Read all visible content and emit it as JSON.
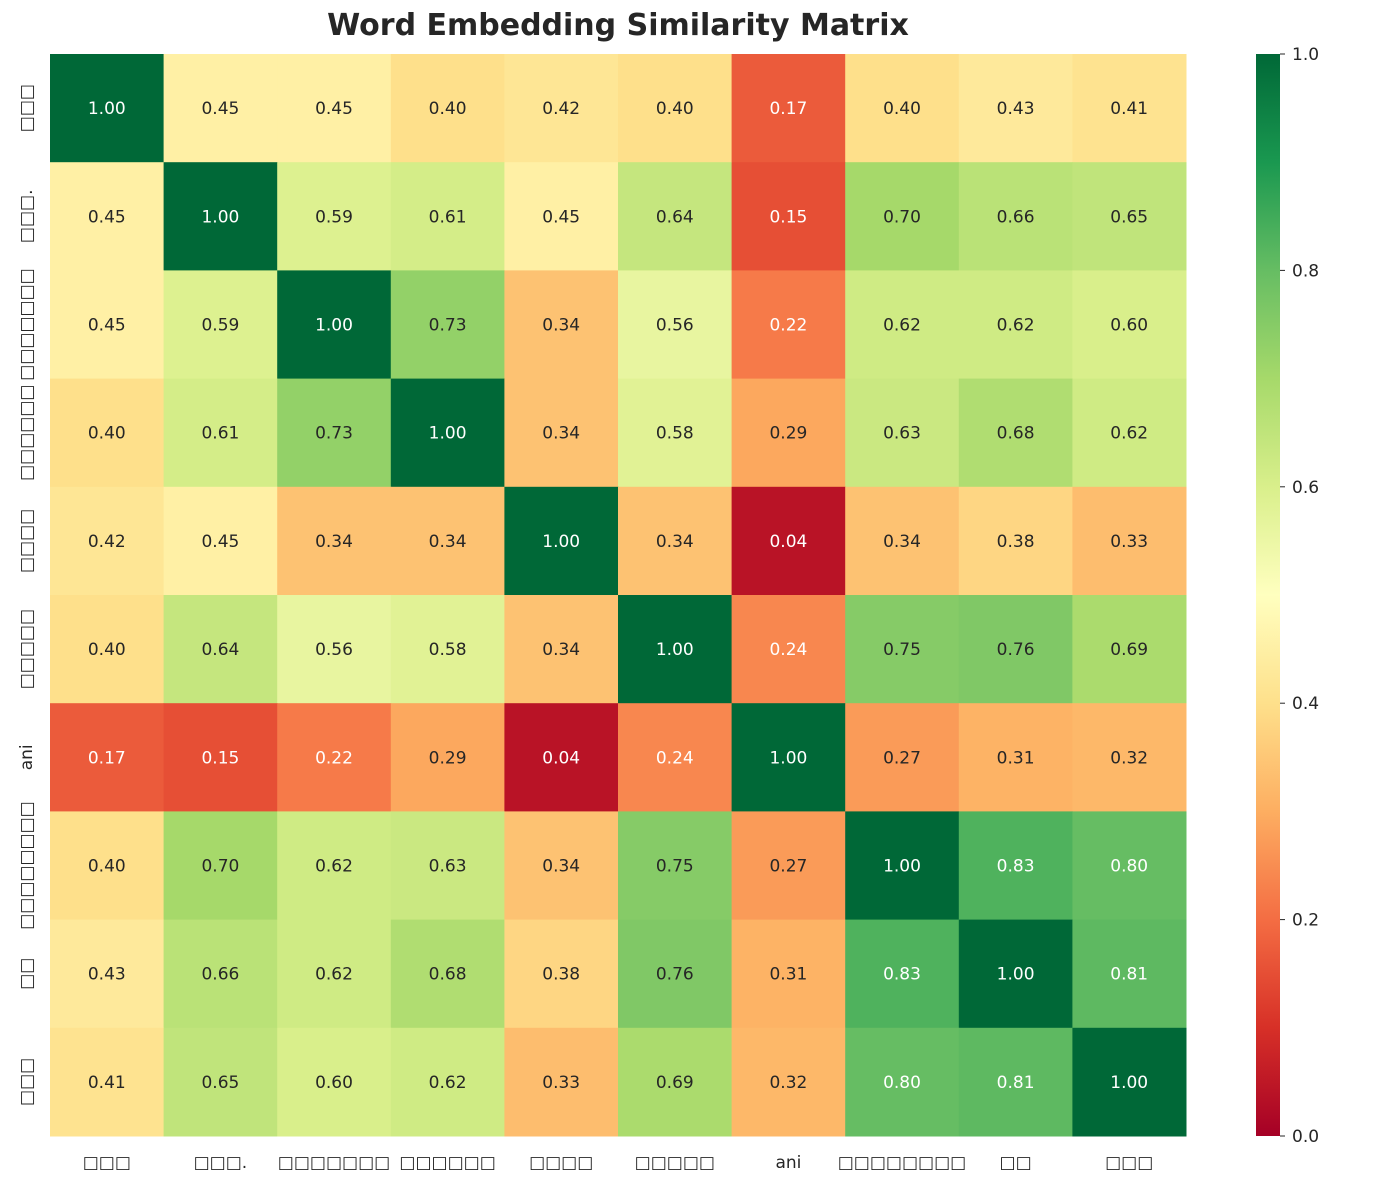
{
  "chart_data": {
    "type": "heatmap",
    "title": "Word Embedding Similarity Matrix",
    "labels": [
      "□□□",
      "□□□.",
      "□□□□□□□",
      "□□□□□□",
      "□□□□",
      "□□□□□",
      "ani",
      "□□□□□□□□",
      "□□",
      "□□□"
    ],
    "values": [
      [
        1.0,
        0.45,
        0.45,
        0.4,
        0.42,
        0.4,
        0.17,
        0.4,
        0.43,
        0.41
      ],
      [
        0.45,
        1.0,
        0.59,
        0.61,
        0.45,
        0.64,
        0.15,
        0.7,
        0.66,
        0.65
      ],
      [
        0.45,
        0.59,
        1.0,
        0.73,
        0.34,
        0.56,
        0.22,
        0.62,
        0.62,
        0.6
      ],
      [
        0.4,
        0.61,
        0.73,
        1.0,
        0.34,
        0.58,
        0.29,
        0.63,
        0.68,
        0.62
      ],
      [
        0.42,
        0.45,
        0.34,
        0.34,
        1.0,
        0.34,
        0.04,
        0.34,
        0.38,
        0.33
      ],
      [
        0.4,
        0.64,
        0.56,
        0.58,
        0.34,
        1.0,
        0.24,
        0.75,
        0.76,
        0.69
      ],
      [
        0.17,
        0.15,
        0.22,
        0.29,
        0.04,
        0.24,
        1.0,
        0.27,
        0.31,
        0.32
      ],
      [
        0.4,
        0.7,
        0.62,
        0.63,
        0.34,
        0.75,
        0.27,
        1.0,
        0.83,
        0.8
      ],
      [
        0.43,
        0.66,
        0.62,
        0.68,
        0.38,
        0.76,
        0.31,
        0.83,
        1.0,
        0.81
      ],
      [
        0.41,
        0.65,
        0.6,
        0.62,
        0.33,
        0.69,
        0.32,
        0.8,
        0.81,
        1.0
      ]
    ],
    "colormap": "RdYlGn",
    "vmin": 0.0,
    "vmax": 1.0,
    "colorbar_ticks": [
      "0.0",
      "0.2",
      "0.4",
      "0.6",
      "0.8",
      "1.0"
    ],
    "annotation_format": "0.00"
  }
}
